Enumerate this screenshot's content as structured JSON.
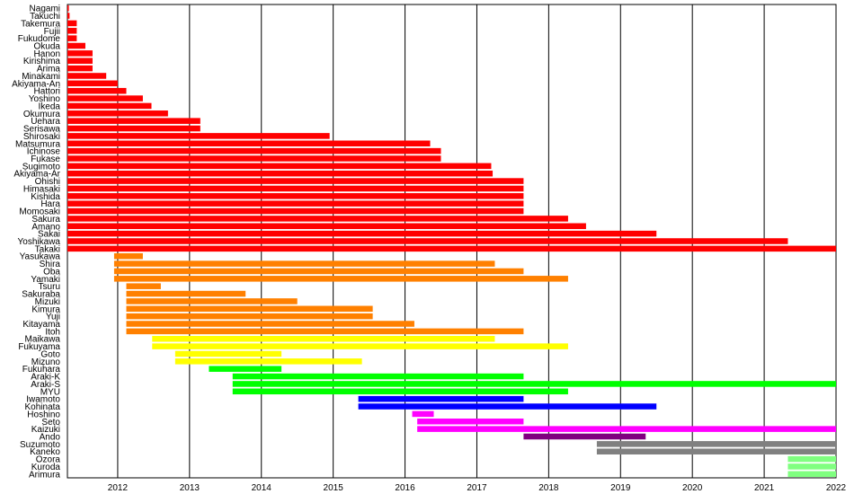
{
  "chart_data": {
    "type": "bar",
    "orientation": "horizontal-timeline",
    "title": "",
    "xlabel": "",
    "ylabel": "",
    "xlim": [
      2011.3,
      2022.0
    ],
    "x_ticks": [
      "2012",
      "2013",
      "2014",
      "2015",
      "2016",
      "2017",
      "2018",
      "2019",
      "2020",
      "2021",
      "2022"
    ],
    "grid": "vertical",
    "rows": [
      {
        "name": "Nagami",
        "start": 2011.3,
        "end": 2011.32,
        "color": "#ff0000"
      },
      {
        "name": "Takuchi",
        "start": 2011.3,
        "end": 2011.33,
        "color": "#ff0000"
      },
      {
        "name": "Takemura",
        "start": 2011.3,
        "end": 2011.43,
        "color": "#ff0000"
      },
      {
        "name": "Fujii",
        "start": 2011.3,
        "end": 2011.43,
        "color": "#ff0000"
      },
      {
        "name": "Fukudome",
        "start": 2011.3,
        "end": 2011.43,
        "color": "#ff0000"
      },
      {
        "name": "Okuda",
        "start": 2011.3,
        "end": 2011.55,
        "color": "#ff0000"
      },
      {
        "name": "Hanon",
        "start": 2011.3,
        "end": 2011.65,
        "color": "#ff0000"
      },
      {
        "name": "Kirishima",
        "start": 2011.3,
        "end": 2011.65,
        "color": "#ff0000"
      },
      {
        "name": "Arima",
        "start": 2011.3,
        "end": 2011.65,
        "color": "#ff0000"
      },
      {
        "name": "Minakami",
        "start": 2011.3,
        "end": 2011.84,
        "color": "#ff0000"
      },
      {
        "name": "Akiyama-An",
        "start": 2011.3,
        "end": 2012.0,
        "color": "#ff0000"
      },
      {
        "name": "Hattori",
        "start": 2011.3,
        "end": 2012.12,
        "color": "#ff0000"
      },
      {
        "name": "Yoshino",
        "start": 2011.3,
        "end": 2012.35,
        "color": "#ff0000"
      },
      {
        "name": "Ikeda",
        "start": 2011.3,
        "end": 2012.47,
        "color": "#ff0000"
      },
      {
        "name": "Okumura",
        "start": 2011.3,
        "end": 2012.7,
        "color": "#ff0000"
      },
      {
        "name": "Uehara",
        "start": 2011.3,
        "end": 2013.15,
        "color": "#ff0000"
      },
      {
        "name": "Serisawa",
        "start": 2011.3,
        "end": 2013.15,
        "color": "#ff0000"
      },
      {
        "name": "Shirosaki",
        "start": 2011.3,
        "end": 2014.95,
        "color": "#ff0000"
      },
      {
        "name": "Matsumura",
        "start": 2011.3,
        "end": 2016.35,
        "color": "#ff0000"
      },
      {
        "name": "Ichinose",
        "start": 2011.3,
        "end": 2016.5,
        "color": "#ff0000"
      },
      {
        "name": "Fukase",
        "start": 2011.3,
        "end": 2016.5,
        "color": "#ff0000"
      },
      {
        "name": "Sugimoto",
        "start": 2011.3,
        "end": 2017.2,
        "color": "#ff0000"
      },
      {
        "name": "Akiyama-Ar",
        "start": 2011.3,
        "end": 2017.22,
        "color": "#ff0000"
      },
      {
        "name": "Ohishi",
        "start": 2011.3,
        "end": 2017.65,
        "color": "#ff0000"
      },
      {
        "name": "Himasaki",
        "start": 2011.3,
        "end": 2017.65,
        "color": "#ff0000"
      },
      {
        "name": "Kishida",
        "start": 2011.3,
        "end": 2017.65,
        "color": "#ff0000"
      },
      {
        "name": "Hara",
        "start": 2011.3,
        "end": 2017.65,
        "color": "#ff0000"
      },
      {
        "name": "Momosaki",
        "start": 2011.3,
        "end": 2017.65,
        "color": "#ff0000"
      },
      {
        "name": "Sakura",
        "start": 2011.3,
        "end": 2018.27,
        "color": "#ff0000"
      },
      {
        "name": "Amano",
        "start": 2011.3,
        "end": 2018.52,
        "color": "#ff0000"
      },
      {
        "name": "Sakai",
        "start": 2011.3,
        "end": 2019.5,
        "color": "#ff0000"
      },
      {
        "name": "Yoshikawa",
        "start": 2011.3,
        "end": 2021.33,
        "color": "#ff0000"
      },
      {
        "name": "Takaki",
        "start": 2011.3,
        "end": 2022.0,
        "color": "#ff0000"
      },
      {
        "name": "Yasukawa",
        "start": 2011.95,
        "end": 2012.35,
        "color": "#ff8000"
      },
      {
        "name": "Shira",
        "start": 2011.95,
        "end": 2017.25,
        "color": "#ff8000"
      },
      {
        "name": "Oba",
        "start": 2011.95,
        "end": 2017.65,
        "color": "#ff8000"
      },
      {
        "name": "Yamaki",
        "start": 2011.95,
        "end": 2018.27,
        "color": "#ff8000"
      },
      {
        "name": "Tsuru",
        "start": 2012.12,
        "end": 2012.6,
        "color": "#ff8000"
      },
      {
        "name": "Sakuraba",
        "start": 2012.12,
        "end": 2013.78,
        "color": "#ff8000"
      },
      {
        "name": "Mizuki",
        "start": 2012.12,
        "end": 2014.5,
        "color": "#ff8000"
      },
      {
        "name": "Kimura",
        "start": 2012.12,
        "end": 2015.55,
        "color": "#ff8000"
      },
      {
        "name": "Yuji",
        "start": 2012.12,
        "end": 2015.55,
        "color": "#ff8000"
      },
      {
        "name": "Kitayama",
        "start": 2012.12,
        "end": 2016.13,
        "color": "#ff8000"
      },
      {
        "name": "Itoh",
        "start": 2012.12,
        "end": 2017.65,
        "color": "#ff8000"
      },
      {
        "name": "Maikawa",
        "start": 2012.48,
        "end": 2017.25,
        "color": "#ffff00"
      },
      {
        "name": "Fukuyama",
        "start": 2012.48,
        "end": 2018.27,
        "color": "#ffff00"
      },
      {
        "name": "Goto",
        "start": 2012.8,
        "end": 2014.28,
        "color": "#ffff00"
      },
      {
        "name": "Mizuno",
        "start": 2012.8,
        "end": 2015.4,
        "color": "#ffff00"
      },
      {
        "name": "Fukuhara",
        "start": 2013.27,
        "end": 2014.28,
        "color": "#00ff00"
      },
      {
        "name": "Araki-K",
        "start": 2013.6,
        "end": 2017.65,
        "color": "#00ff00"
      },
      {
        "name": "Araki-S",
        "start": 2013.6,
        "end": 2022.0,
        "color": "#00ff00"
      },
      {
        "name": "MYU",
        "start": 2013.6,
        "end": 2018.27,
        "color": "#00ff00"
      },
      {
        "name": "Iwamoto",
        "start": 2015.35,
        "end": 2017.65,
        "color": "#0000ff"
      },
      {
        "name": "Kohinata",
        "start": 2015.35,
        "end": 2019.5,
        "color": "#0000ff"
      },
      {
        "name": "Hoshino",
        "start": 2016.1,
        "end": 2016.4,
        "color": "#ff00ff"
      },
      {
        "name": "Seto",
        "start": 2016.17,
        "end": 2017.65,
        "color": "#ff00ff"
      },
      {
        "name": "Kaizuki",
        "start": 2016.17,
        "end": 2022.0,
        "color": "#ff00ff"
      },
      {
        "name": "Ando",
        "start": 2017.65,
        "end": 2019.35,
        "color": "#800080"
      },
      {
        "name": "Suzumoto",
        "start": 2018.67,
        "end": 2022.0,
        "color": "#808080"
      },
      {
        "name": "Kaneko",
        "start": 2018.67,
        "end": 2022.0,
        "color": "#808080"
      },
      {
        "name": "Ozora",
        "start": 2021.33,
        "end": 2022.0,
        "color": "#80ff80"
      },
      {
        "name": "Kuroda",
        "start": 2021.33,
        "end": 2022.0,
        "color": "#80ff80"
      },
      {
        "name": "Arimura",
        "start": 2021.33,
        "end": 2022.0,
        "color": "#80ff80"
      }
    ]
  }
}
